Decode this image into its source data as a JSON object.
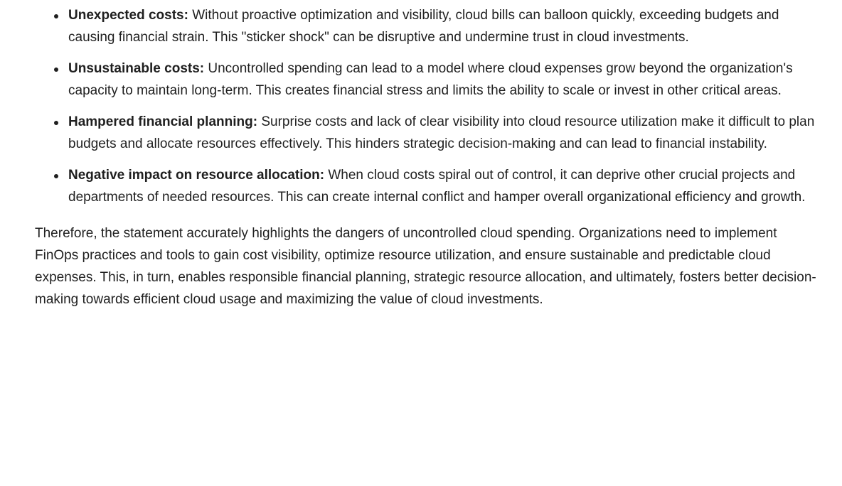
{
  "bullets": [
    {
      "term": "Unexpected costs:",
      "text": " Without proactive optimization and visibility, cloud bills can balloon quickly, exceeding budgets and causing financial strain. This \"sticker shock\" can be disruptive and undermine trust in cloud investments."
    },
    {
      "term": "Unsustainable costs:",
      "text": " Uncontrolled spending can lead to a model where cloud expenses grow beyond the organization's capacity to maintain long-term. This creates financial stress and limits the ability to scale or invest in other critical areas."
    },
    {
      "term": "Hampered financial planning:",
      "text": " Surprise costs and lack of clear visibility into cloud resource utilization make it difficult to plan budgets and allocate resources effectively. This hinders strategic decision-making and can lead to financial instability."
    },
    {
      "term": "Negative impact on resource allocation:",
      "text": " When cloud costs spiral out of control, it can deprive other crucial projects and departments of needed resources. This can create internal conflict and hamper overall organizational efficiency and growth."
    }
  ],
  "conclusion": "Therefore, the statement accurately highlights the dangers of uncontrolled cloud spending. Organizations need to implement FinOps practices and tools to gain cost visibility, optimize resource utilization, and ensure sustainable and predictable cloud expenses. This, in turn, enables responsible financial planning, strategic resource allocation, and ultimately, fosters better decision-making towards efficient cloud usage and maximizing the value of cloud investments."
}
